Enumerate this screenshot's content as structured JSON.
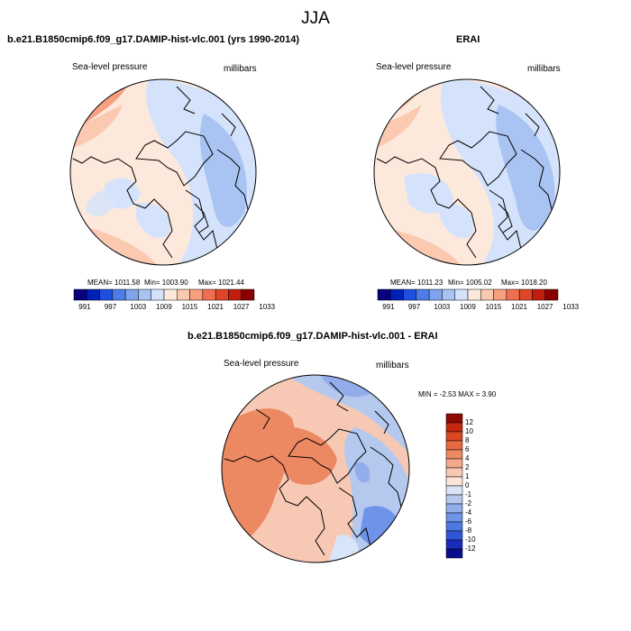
{
  "season": "JJA",
  "colors": {
    "land_outline": "#000000",
    "seq_palette": [
      "#08007f",
      "#0021b8",
      "#1f4fe0",
      "#4d7ce8",
      "#7ea4ee",
      "#a9c4f3",
      "#d4e3fb",
      "#fde8dc",
      "#fbc8b0",
      "#f6a07f",
      "#ef7050",
      "#e04526",
      "#c01d0c",
      "#8a0000"
    ],
    "diff_palette": [
      "#0a0d8a",
      "#1a2bbb",
      "#2f55d9",
      "#4e78e4",
      "#6f93e8",
      "#92ade9",
      "#b5c9ef",
      "#d8e4f8",
      "#fbe3d7",
      "#f7c8b3",
      "#f2a98b",
      "#ec8962",
      "#e6693f",
      "#dc4724",
      "#c42810",
      "#8e0a02"
    ]
  },
  "panels": [
    {
      "id": "model",
      "title": "b.e21.B1850cmip6.f09_g17.DAMIP-hist-vlc.001 (yrs 1990-2014)",
      "left_label": "Sea-level pressure",
      "right_label": "millibars",
      "stats": {
        "mean": "MEAN= 1011.58",
        "min": "Min= 1003.90",
        "max": "Max= 1021.44"
      },
      "colorbar_ticks": [
        "991",
        "997",
        "1003",
        "1009",
        "1015",
        "1021",
        "1027",
        "1033"
      ]
    },
    {
      "id": "obs",
      "title": "ERAI",
      "left_label": "Sea-level pressure",
      "right_label": "millibars",
      "stats": {
        "mean": "MEAN= 1011.23",
        "min": "Min= 1005.02",
        "max": "Max= 1018.20"
      },
      "colorbar_ticks": [
        "991",
        "997",
        "1003",
        "1009",
        "1015",
        "1021",
        "1027",
        "1033"
      ]
    },
    {
      "id": "diff",
      "title": "b.e21.B1850cmip6.f09_g17.DAMIP-hist-vlc.001 - ERAI",
      "left_label": "Sea-level pressure",
      "right_label": "millibars",
      "stats": {
        "minmax": "MIN =  -2.53 MAX =   3.90"
      },
      "colorbar_ticks": [
        "12",
        "10",
        "8",
        "6",
        "4",
        "2",
        "1",
        "0",
        "-1",
        "-2",
        "-4",
        "-6",
        "-8",
        "-10",
        "-12"
      ]
    }
  ],
  "chart_data": [
    {
      "type": "heatmap",
      "title": "b.e21.B1850cmip6.f09_g17.DAMIP-hist-vlc.001 (yrs 1990-2014)",
      "variable": "Sea-level pressure",
      "units": "millibars",
      "projection": "north polar stereographic",
      "mean": 1011.58,
      "min": 1003.9,
      "max": 1021.44,
      "colorbar_levels": [
        991,
        997,
        1003,
        1009,
        1015,
        1021,
        1027,
        1033
      ]
    },
    {
      "type": "heatmap",
      "title": "ERAI",
      "variable": "Sea-level pressure",
      "units": "millibars",
      "projection": "north polar stereographic",
      "mean": 1011.23,
      "min": 1005.02,
      "max": 1018.2,
      "colorbar_levels": [
        991,
        997,
        1003,
        1009,
        1015,
        1021,
        1027,
        1033
      ]
    },
    {
      "type": "heatmap",
      "title": "b.e21.B1850cmip6.f09_g17.DAMIP-hist-vlc.001 - ERAI",
      "variable": "Sea-level pressure",
      "units": "millibars",
      "projection": "north polar stereographic",
      "min": -2.53,
      "max": 3.9,
      "colorbar_levels": [
        -12,
        -10,
        -8,
        -6,
        -4,
        -2,
        -1,
        0,
        1,
        2,
        4,
        6,
        8,
        10,
        12
      ]
    }
  ]
}
